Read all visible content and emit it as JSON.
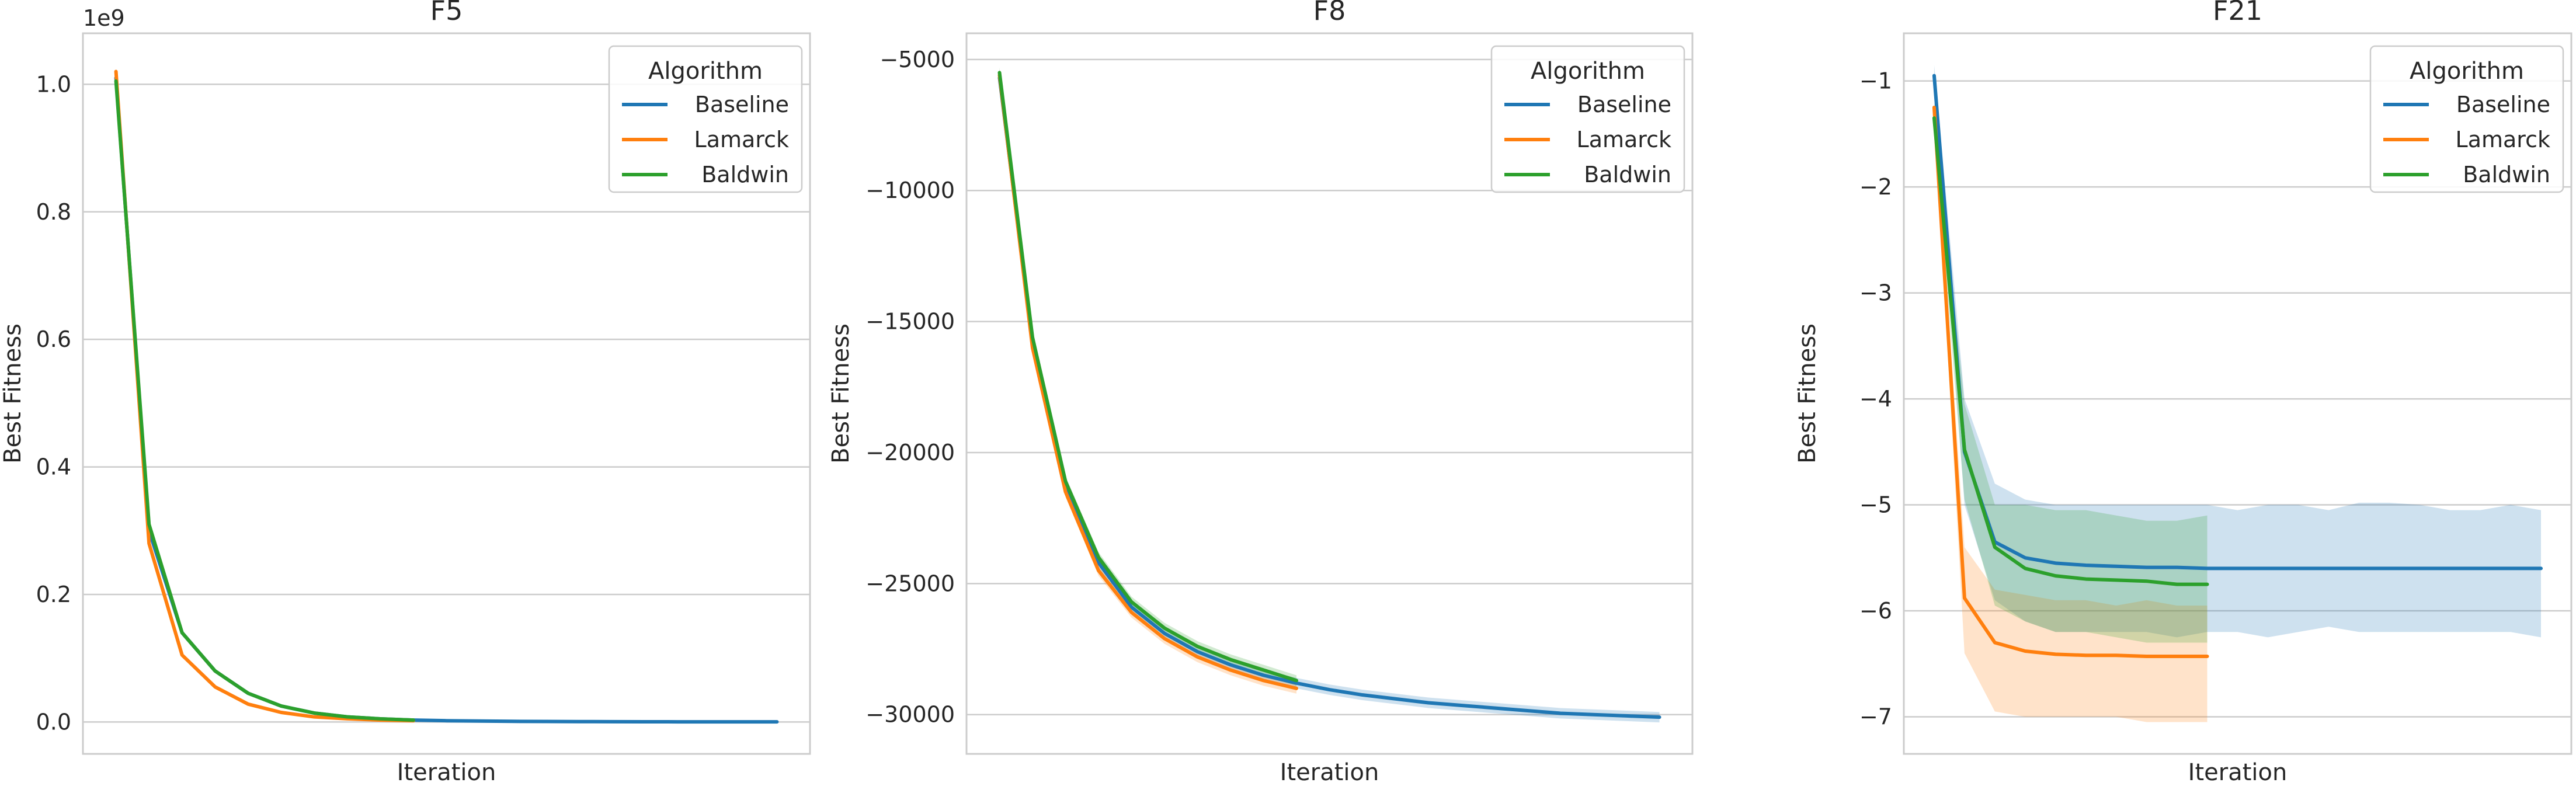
{
  "figure": {
    "legend_title": "Algorithm",
    "colors": {
      "Baseline": "#1f77b4",
      "Lamarck": "#ff7f0e",
      "Baldwin": "#2ca02c"
    }
  },
  "chart_data": [
    {
      "type": "line",
      "title": "F5",
      "xlabel": "Iteration",
      "ylabel": "Best Fitness",
      "offset_text": "1e9",
      "ylim": [
        -0.05,
        1.08
      ],
      "yticks": [
        0.0,
        0.2,
        0.4,
        0.6,
        0.8,
        1.0
      ],
      "ytick_labels": [
        "0.0",
        "0.2",
        "0.4",
        "0.6",
        "0.8",
        "1.0"
      ],
      "xlim": [
        -1,
        21
      ],
      "grid": true,
      "legend": {
        "title": "Algorithm",
        "placement": "upper right"
      },
      "series": [
        {
          "name": "Baseline",
          "color": "#1f77b4",
          "x": [
            0,
            1,
            2,
            3,
            4,
            5,
            6,
            7,
            8,
            9,
            10,
            11,
            12,
            13,
            14,
            15,
            16,
            17,
            18,
            19,
            20
          ],
          "y": [
            1.01,
            0.3,
            0.14,
            0.08,
            0.045,
            0.025,
            0.014,
            0.008,
            0.005,
            0.003,
            0.002,
            0.0015,
            0.001,
            0.0008,
            0.0006,
            0.0005,
            0.0004,
            0.0003,
            0.0003,
            0.0002,
            0.0002
          ],
          "band": null
        },
        {
          "name": "Lamarck",
          "color": "#ff7f0e",
          "x": [
            0,
            1,
            2,
            3,
            4,
            5,
            6,
            7,
            8,
            9
          ],
          "y": [
            1.02,
            0.28,
            0.105,
            0.055,
            0.028,
            0.015,
            0.008,
            0.005,
            0.003,
            0.002
          ],
          "band": null
        },
        {
          "name": "Baldwin",
          "color": "#2ca02c",
          "x": [
            0,
            1,
            2,
            3,
            4,
            5,
            6,
            7,
            8,
            9
          ],
          "y": [
            1.005,
            0.31,
            0.14,
            0.08,
            0.045,
            0.025,
            0.014,
            0.008,
            0.005,
            0.003
          ],
          "band": null
        }
      ]
    },
    {
      "type": "line",
      "title": "F8",
      "xlabel": "Iteration",
      "ylabel": "Best Fitness",
      "offset_text": "",
      "ylim": [
        -31500,
        -4000
      ],
      "yticks": [
        -30000,
        -25000,
        -20000,
        -15000,
        -10000,
        -5000
      ],
      "ytick_labels": [
        "−30000",
        "−25000",
        "−20000",
        "−15000",
        "−10000",
        "−5000"
      ],
      "xlim": [
        -1,
        21
      ],
      "grid": true,
      "legend": {
        "title": "Algorithm",
        "placement": "upper right"
      },
      "series": [
        {
          "name": "Baseline",
          "color": "#1f77b4",
          "x": [
            0,
            1,
            2,
            3,
            4,
            5,
            6,
            7,
            8,
            9,
            10,
            11,
            12,
            13,
            14,
            15,
            16,
            17,
            18,
            19,
            20
          ],
          "y": [
            -5700,
            -15800,
            -21300,
            -24200,
            -25900,
            -26900,
            -27600,
            -28100,
            -28500,
            -28800,
            -29050,
            -29250,
            -29400,
            -29550,
            -29650,
            -29750,
            -29850,
            -29950,
            -30000,
            -30050,
            -30100
          ],
          "band": [
            [
              -5500,
              -5900
            ],
            [
              -15600,
              -16000
            ],
            [
              -21100,
              -21500
            ],
            [
              -24000,
              -24400
            ],
            [
              -25700,
              -26100
            ],
            [
              -26700,
              -27100
            ],
            [
              -27400,
              -27800
            ],
            [
              -27900,
              -28300
            ],
            [
              -28300,
              -28700
            ],
            [
              -28600,
              -29000
            ],
            [
              -28850,
              -29250
            ],
            [
              -29050,
              -29450
            ],
            [
              -29200,
              -29600
            ],
            [
              -29350,
              -29750
            ],
            [
              -29450,
              -29850
            ],
            [
              -29550,
              -29950
            ],
            [
              -29650,
              -30050
            ],
            [
              -29750,
              -30150
            ],
            [
              -29800,
              -30200
            ],
            [
              -29850,
              -30250
            ],
            [
              -29900,
              -30300
            ]
          ]
        },
        {
          "name": "Lamarck",
          "color": "#ff7f0e",
          "x": [
            0,
            1,
            2,
            3,
            4,
            5,
            6,
            7,
            8,
            9
          ],
          "y": [
            -5600,
            -16000,
            -21500,
            -24500,
            -26100,
            -27100,
            -27800,
            -28300,
            -28700,
            -29000
          ],
          "band": [
            [
              -5400,
              -5800
            ],
            [
              -15800,
              -16200
            ],
            [
              -21300,
              -21700
            ],
            [
              -24300,
              -24700
            ],
            [
              -25900,
              -26300
            ],
            [
              -26900,
              -27300
            ],
            [
              -27600,
              -28000
            ],
            [
              -28100,
              -28500
            ],
            [
              -28500,
              -28900
            ],
            [
              -28800,
              -29200
            ]
          ]
        },
        {
          "name": "Baldwin",
          "color": "#2ca02c",
          "x": [
            0,
            1,
            2,
            3,
            4,
            5,
            6,
            7,
            8,
            9
          ],
          "y": [
            -5500,
            -15600,
            -21100,
            -24000,
            -25700,
            -26700,
            -27400,
            -27900,
            -28300,
            -28700
          ],
          "band": [
            [
              -5300,
              -5700
            ],
            [
              -15400,
              -15800
            ],
            [
              -20900,
              -21300
            ],
            [
              -23800,
              -24200
            ],
            [
              -25500,
              -25900
            ],
            [
              -26500,
              -26900
            ],
            [
              -27200,
              -27600
            ],
            [
              -27700,
              -28100
            ],
            [
              -28100,
              -28500
            ],
            [
              -28500,
              -28900
            ]
          ]
        }
      ]
    },
    {
      "type": "line",
      "title": "F21",
      "xlabel": "Iteration",
      "ylabel": "Best Fitness",
      "offset_text": "",
      "ylim": [
        -7.35,
        -0.55
      ],
      "yticks": [
        -7,
        -6,
        -5,
        -4,
        -3,
        -2,
        -1
      ],
      "ytick_labels": [
        "−7",
        "−6",
        "−5",
        "−4",
        "−3",
        "−2",
        "−1"
      ],
      "xlim": [
        -1,
        21
      ],
      "grid": true,
      "legend": {
        "title": "Algorithm",
        "placement": "upper right"
      },
      "series": [
        {
          "name": "Baseline",
          "color": "#1f77b4",
          "x": [
            0,
            1,
            2,
            3,
            4,
            5,
            6,
            7,
            8,
            9,
            10,
            11,
            12,
            13,
            14,
            15,
            16,
            17,
            18,
            19,
            20
          ],
          "y": [
            -0.95,
            -4.5,
            -5.35,
            -5.5,
            -5.55,
            -5.57,
            -5.58,
            -5.59,
            -5.59,
            -5.6,
            -5.6,
            -5.6,
            -5.6,
            -5.6,
            -5.6,
            -5.6,
            -5.6,
            -5.6,
            -5.6,
            -5.6,
            -5.6
          ],
          "band": [
            [
              -0.85,
              -1.05
            ],
            [
              -4.0,
              -5.0
            ],
            [
              -4.8,
              -5.9
            ],
            [
              -4.95,
              -6.1
            ],
            [
              -5.0,
              -6.2
            ],
            [
              -5.0,
              -6.2
            ],
            [
              -5.0,
              -6.2
            ],
            [
              -5.0,
              -6.2
            ],
            [
              -5.0,
              -6.25
            ],
            [
              -5.0,
              -6.2
            ],
            [
              -5.05,
              -6.2
            ],
            [
              -5.0,
              -6.25
            ],
            [
              -5.0,
              -6.2
            ],
            [
              -5.05,
              -6.15
            ],
            [
              -4.98,
              -6.2
            ],
            [
              -4.98,
              -6.2
            ],
            [
              -5.0,
              -6.2
            ],
            [
              -5.05,
              -6.2
            ],
            [
              -5.05,
              -6.2
            ],
            [
              -5.0,
              -6.2
            ],
            [
              -5.05,
              -6.25
            ]
          ]
        },
        {
          "name": "Lamarck",
          "color": "#ff7f0e",
          "x": [
            0,
            1,
            2,
            3,
            4,
            5,
            6,
            7,
            8,
            9
          ],
          "y": [
            -1.25,
            -5.88,
            -6.3,
            -6.38,
            -6.41,
            -6.42,
            -6.42,
            -6.43,
            -6.43,
            -6.43
          ],
          "band": [
            [
              -1.2,
              -1.3
            ],
            [
              -5.4,
              -6.4
            ],
            [
              -5.8,
              -6.95
            ],
            [
              -5.85,
              -7.0
            ],
            [
              -5.9,
              -7.0
            ],
            [
              -5.9,
              -7.0
            ],
            [
              -5.95,
              -7.0
            ],
            [
              -5.9,
              -7.05
            ],
            [
              -5.95,
              -7.05
            ],
            [
              -5.95,
              -7.05
            ]
          ]
        },
        {
          "name": "Baldwin",
          "color": "#2ca02c",
          "x": [
            0,
            1,
            2,
            3,
            4,
            5,
            6,
            7,
            8,
            9
          ],
          "y": [
            -1.35,
            -4.48,
            -5.4,
            -5.6,
            -5.67,
            -5.7,
            -5.71,
            -5.72,
            -5.75,
            -5.75
          ],
          "band": [
            [
              -1.2,
              -1.5
            ],
            [
              -4.05,
              -4.95
            ],
            [
              -5.0,
              -5.95
            ],
            [
              -5.0,
              -6.1
            ],
            [
              -5.05,
              -6.2
            ],
            [
              -5.05,
              -6.2
            ],
            [
              -5.1,
              -6.25
            ],
            [
              -5.15,
              -6.3
            ],
            [
              -5.15,
              -6.3
            ],
            [
              -5.1,
              -6.3
            ]
          ]
        }
      ]
    }
  ]
}
